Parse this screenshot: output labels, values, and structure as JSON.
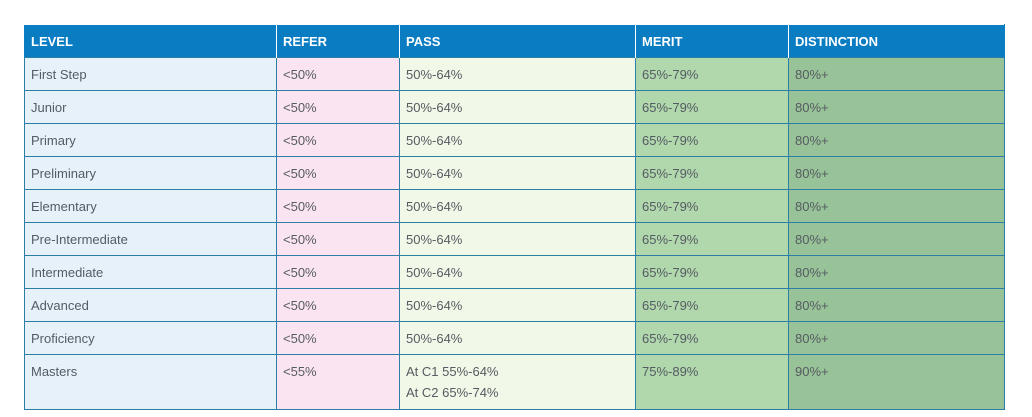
{
  "headers": {
    "level": "LEVEL",
    "refer": "REFER",
    "pass": "PASS",
    "merit": "MERIT",
    "distinction": "DISTINCTION"
  },
  "rows": [
    {
      "level": "First Step",
      "refer": "<50%",
      "pass": [
        "50%-64%"
      ],
      "merit": "65%-79%",
      "distinction": "80%+"
    },
    {
      "level": "Junior",
      "refer": "<50%",
      "pass": [
        "50%-64%"
      ],
      "merit": "65%-79%",
      "distinction": "80%+"
    },
    {
      "level": "Primary",
      "refer": "<50%",
      "pass": [
        "50%-64%"
      ],
      "merit": "65%-79%",
      "distinction": "80%+"
    },
    {
      "level": "Preliminary",
      "refer": "<50%",
      "pass": [
        "50%-64%"
      ],
      "merit": "65%-79%",
      "distinction": "80%+"
    },
    {
      "level": "Elementary",
      "refer": "<50%",
      "pass": [
        "50%-64%"
      ],
      "merit": "65%-79%",
      "distinction": "80%+"
    },
    {
      "level": "Pre-Intermediate",
      "refer": "<50%",
      "pass": [
        "50%-64%"
      ],
      "merit": "65%-79%",
      "distinction": "80%+"
    },
    {
      "level": "Intermediate",
      "refer": "<50%",
      "pass": [
        "50%-64%"
      ],
      "merit": "65%-79%",
      "distinction": "80%+"
    },
    {
      "level": "Advanced",
      "refer": "<50%",
      "pass": [
        "50%-64%"
      ],
      "merit": "65%-79%",
      "distinction": "80%+"
    },
    {
      "level": "Proficiency",
      "refer": "<50%",
      "pass": [
        "50%-64%"
      ],
      "merit": "65%-79%",
      "distinction": "80%+"
    },
    {
      "level": "Masters",
      "refer": "<55%",
      "pass": [
        "At C1 55%-64%",
        "At C2 65%-74%"
      ],
      "merit": "75%-89%",
      "distinction": "90%+"
    }
  ]
}
